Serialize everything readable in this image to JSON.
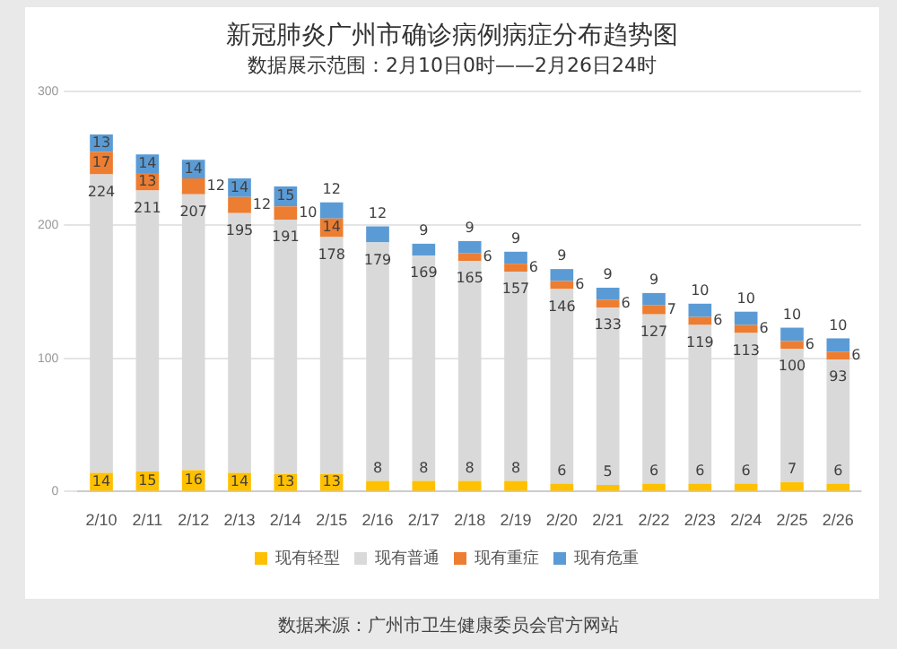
{
  "chart_data": {
    "type": "bar",
    "stacked": true,
    "title": "新冠肺炎广州市确诊病例病症分布趋势图",
    "categories": [
      "2/10",
      "2/11",
      "2/12",
      "2/13",
      "2/14",
      "2/15",
      "2/16",
      "2/17",
      "2/18",
      "2/19",
      "2/20",
      "2/21",
      "2/22",
      "2/23",
      "2/24",
      "2/25",
      "2/26"
    ],
    "series": [
      {
        "name": "现有轻型",
        "color": "#ffc000",
        "values": [
          14,
          15,
          16,
          14,
          13,
          13,
          8,
          8,
          8,
          8,
          6,
          5,
          6,
          6,
          6,
          7,
          6
        ]
      },
      {
        "name": "现有普通",
        "color": "#d9d9d9",
        "values": [
          224,
          211,
          207,
          195,
          191,
          178,
          179,
          169,
          165,
          157,
          146,
          133,
          127,
          119,
          113,
          100,
          93
        ]
      },
      {
        "name": "现有重症",
        "color": "#ed7d31",
        "values": [
          17,
          13,
          12,
          12,
          10,
          14,
          null,
          null,
          6,
          6,
          6,
          6,
          7,
          6,
          6,
          6,
          6
        ]
      },
      {
        "name": "现有危重",
        "color": "#5b9bd5",
        "values": [
          13,
          14,
          14,
          14,
          15,
          12,
          12,
          9,
          9,
          9,
          9,
          9,
          9,
          10,
          10,
          10,
          10
        ]
      }
    ],
    "ylim": [
      0,
      300
    ],
    "yticks": [
      0,
      100,
      200,
      300
    ],
    "grid": "y",
    "legend": "bottom",
    "data_labels": true,
    "subtitle": "数据展示范围：2月10日0时——2月26日24时",
    "annotations": [
      "数据来源：广州市卫生健康委员会官方网站"
    ]
  }
}
